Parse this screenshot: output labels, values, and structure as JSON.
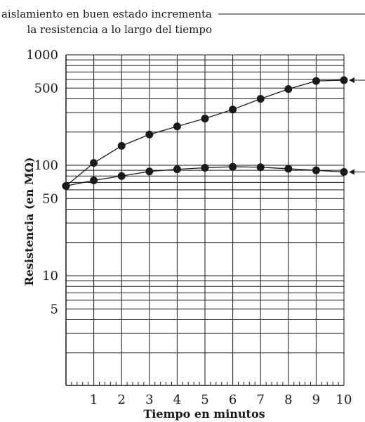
{
  "chart_data": {
    "type": "line",
    "annotation": [
      "El aislamiento en buen estado incrementa",
      "la resistencia a lo largo del tiempo"
    ],
    "xlabel": "Tiempo en minutos",
    "ylabel": "Resistencia (en MΩ)",
    "x_ticks": [
      "1",
      "2",
      "3",
      "4",
      "5",
      "6",
      "7",
      "8",
      "9",
      "10"
    ],
    "y_ticks": [
      {
        "value": 1000,
        "label": "1000"
      },
      {
        "value": 500,
        "label": "500"
      },
      {
        "value": 100,
        "label": "100"
      },
      {
        "value": 50,
        "label": "50"
      },
      {
        "value": 10,
        "label": "10"
      },
      {
        "value": 5,
        "label": "5"
      }
    ],
    "xlim": [
      0,
      10
    ],
    "ylim": [
      1,
      1000
    ],
    "yscale": "log",
    "grid": true,
    "series": [
      {
        "x": [
          0,
          1,
          2,
          3,
          4,
          5,
          6,
          7,
          8,
          9,
          10
        ],
        "values": [
          65,
          105,
          150,
          190,
          225,
          265,
          320,
          400,
          490,
          580,
          590
        ],
        "arrow": true
      },
      {
        "x": [
          0,
          1,
          2,
          3,
          4,
          5,
          6,
          7,
          8,
          9,
          10
        ],
        "values": [
          65,
          73,
          80,
          88,
          92,
          95,
          97,
          96,
          93,
          90,
          87
        ],
        "arrow": true
      }
    ]
  }
}
